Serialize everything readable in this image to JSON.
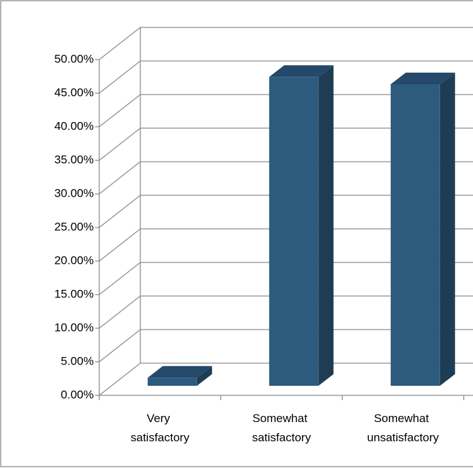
{
  "chart_data": {
    "type": "bar3d",
    "categories": [
      "Very satisfactory",
      "Somewhat satisfactory",
      "Somewhat unsatisfactory"
    ],
    "values": [
      1.2,
      46.0,
      44.9
    ],
    "color": "#2c5b7e",
    "ylim": [
      0,
      50
    ],
    "yticks": [
      {
        "value": 0,
        "label": "0.00%"
      },
      {
        "value": 5,
        "label": "5.00%"
      },
      {
        "value": 10,
        "label": "10.00%"
      },
      {
        "value": 15,
        "label": "15.00%"
      },
      {
        "value": 20,
        "label": "20.00%"
      },
      {
        "value": 25,
        "label": "25.00%"
      },
      {
        "value": 30,
        "label": "30.00%"
      },
      {
        "value": 35,
        "label": "35.00%"
      },
      {
        "value": 40,
        "label": "40.00%"
      },
      {
        "value": 45,
        "label": "45.00%"
      },
      {
        "value": 50,
        "label": "50.00%"
      }
    ],
    "grid": true
  }
}
